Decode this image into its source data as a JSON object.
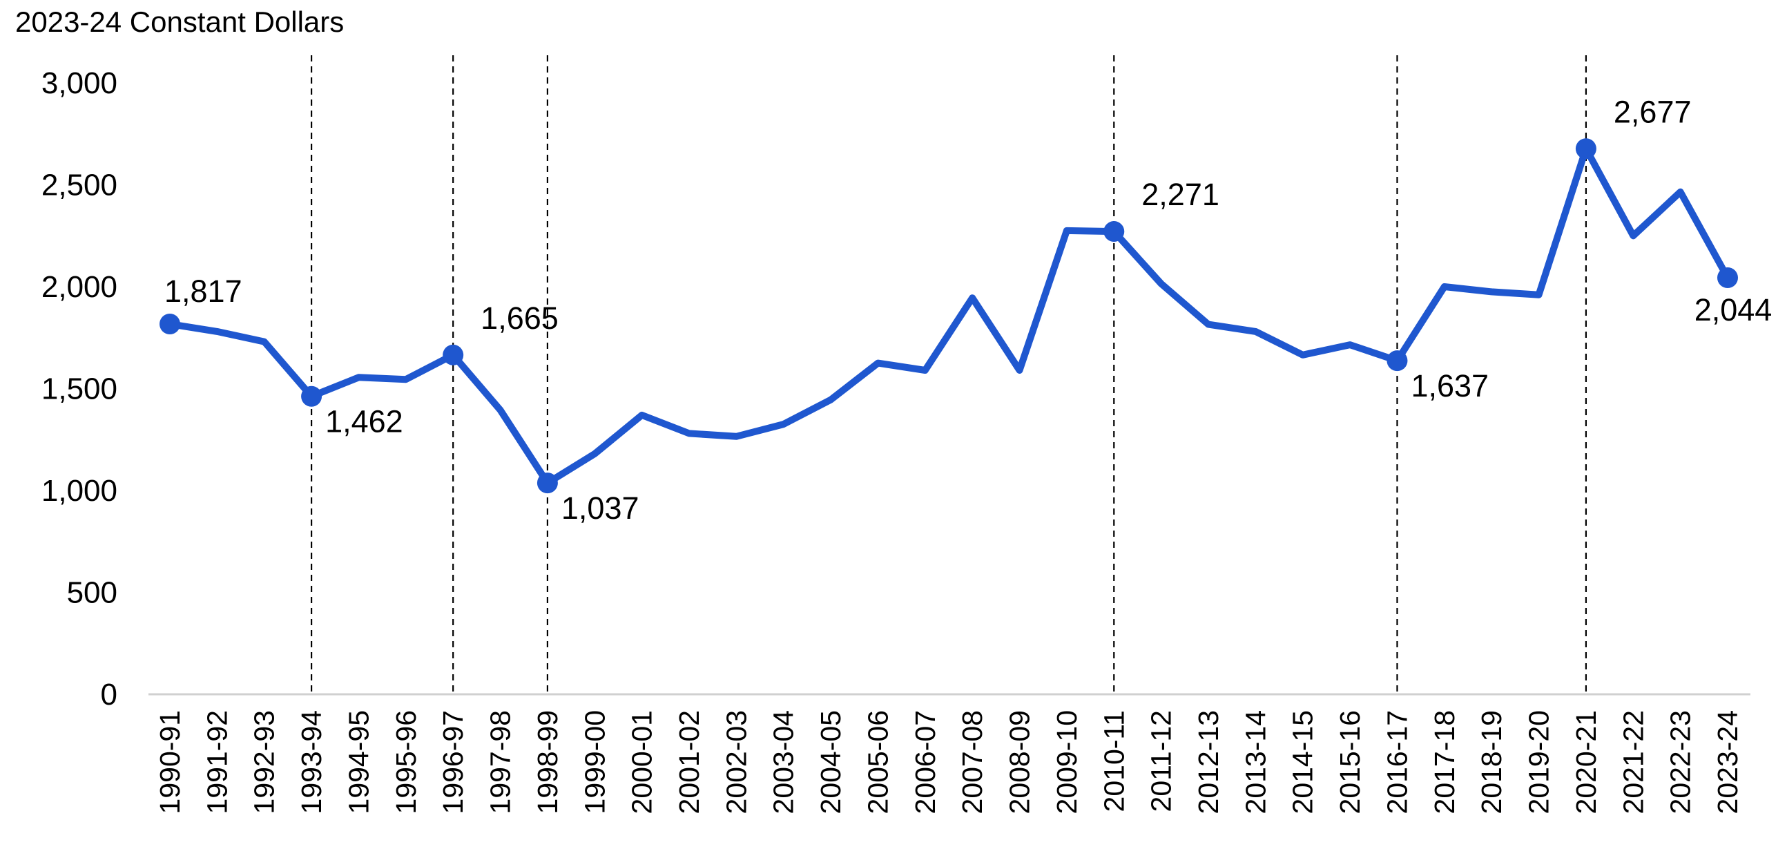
{
  "chart_data": {
    "type": "line",
    "y_unit_label": "2023-24 Constant Dollars",
    "xlabel": "",
    "ylabel": "",
    "ylim": [
      0,
      3000
    ],
    "yticks": [
      0,
      500,
      1000,
      1500,
      2000,
      2500,
      3000
    ],
    "ytick_labels": [
      "0",
      "500",
      "1,000",
      "1,500",
      "2,000",
      "2,500",
      "3,000"
    ],
    "grid": false,
    "legend": "none",
    "categories": [
      "1990-91",
      "1991-92",
      "1992-93",
      "1993-94",
      "1994-95",
      "1995-96",
      "1996-97",
      "1997-98",
      "1998-99",
      "1999-00",
      "2000-01",
      "2001-02",
      "2002-03",
      "2003-04",
      "2004-05",
      "2005-06",
      "2006-07",
      "2007-08",
      "2008-09",
      "2009-10",
      "2010-11",
      "2011-12",
      "2012-13",
      "2013-14",
      "2014-15",
      "2015-16",
      "2016-17",
      "2017-18",
      "2018-19",
      "2019-20",
      "2020-21",
      "2021-22",
      "2022-23",
      "2023-24"
    ],
    "series": [
      {
        "values": [
          1817,
          1780,
          1730,
          1462,
          1555,
          1545,
          1665,
          1395,
          1037,
          1180,
          1370,
          1280,
          1265,
          1325,
          1445,
          1625,
          1590,
          1945,
          1590,
          2275,
          2271,
          2015,
          1815,
          1780,
          1665,
          1715,
          1637,
          2000,
          1975,
          1960,
          2677,
          2250,
          2465,
          2044
        ]
      }
    ],
    "highlighted_points": [
      {
        "index": 0,
        "label": "1,817",
        "position": "above"
      },
      {
        "index": 3,
        "label": "1,462",
        "position": "below-right"
      },
      {
        "index": 6,
        "label": "1,665",
        "position": "above-right"
      },
      {
        "index": 8,
        "label": "1,037",
        "position": "below-right"
      },
      {
        "index": 20,
        "label": "2,271",
        "position": "above-right"
      },
      {
        "index": 26,
        "label": "1,637",
        "position": "below-right"
      },
      {
        "index": 30,
        "label": "2,677",
        "position": "above-right"
      },
      {
        "index": 33,
        "label": "2,044",
        "position": "below"
      }
    ],
    "vertical_markers": [
      "1993-94",
      "1996-97",
      "1998-99",
      "2010-11",
      "2016-17",
      "2020-21"
    ],
    "colors": {
      "line": "#1f57cf",
      "axis": "#d0d0d0",
      "marker_line": "#000000",
      "text": "#000000"
    }
  }
}
